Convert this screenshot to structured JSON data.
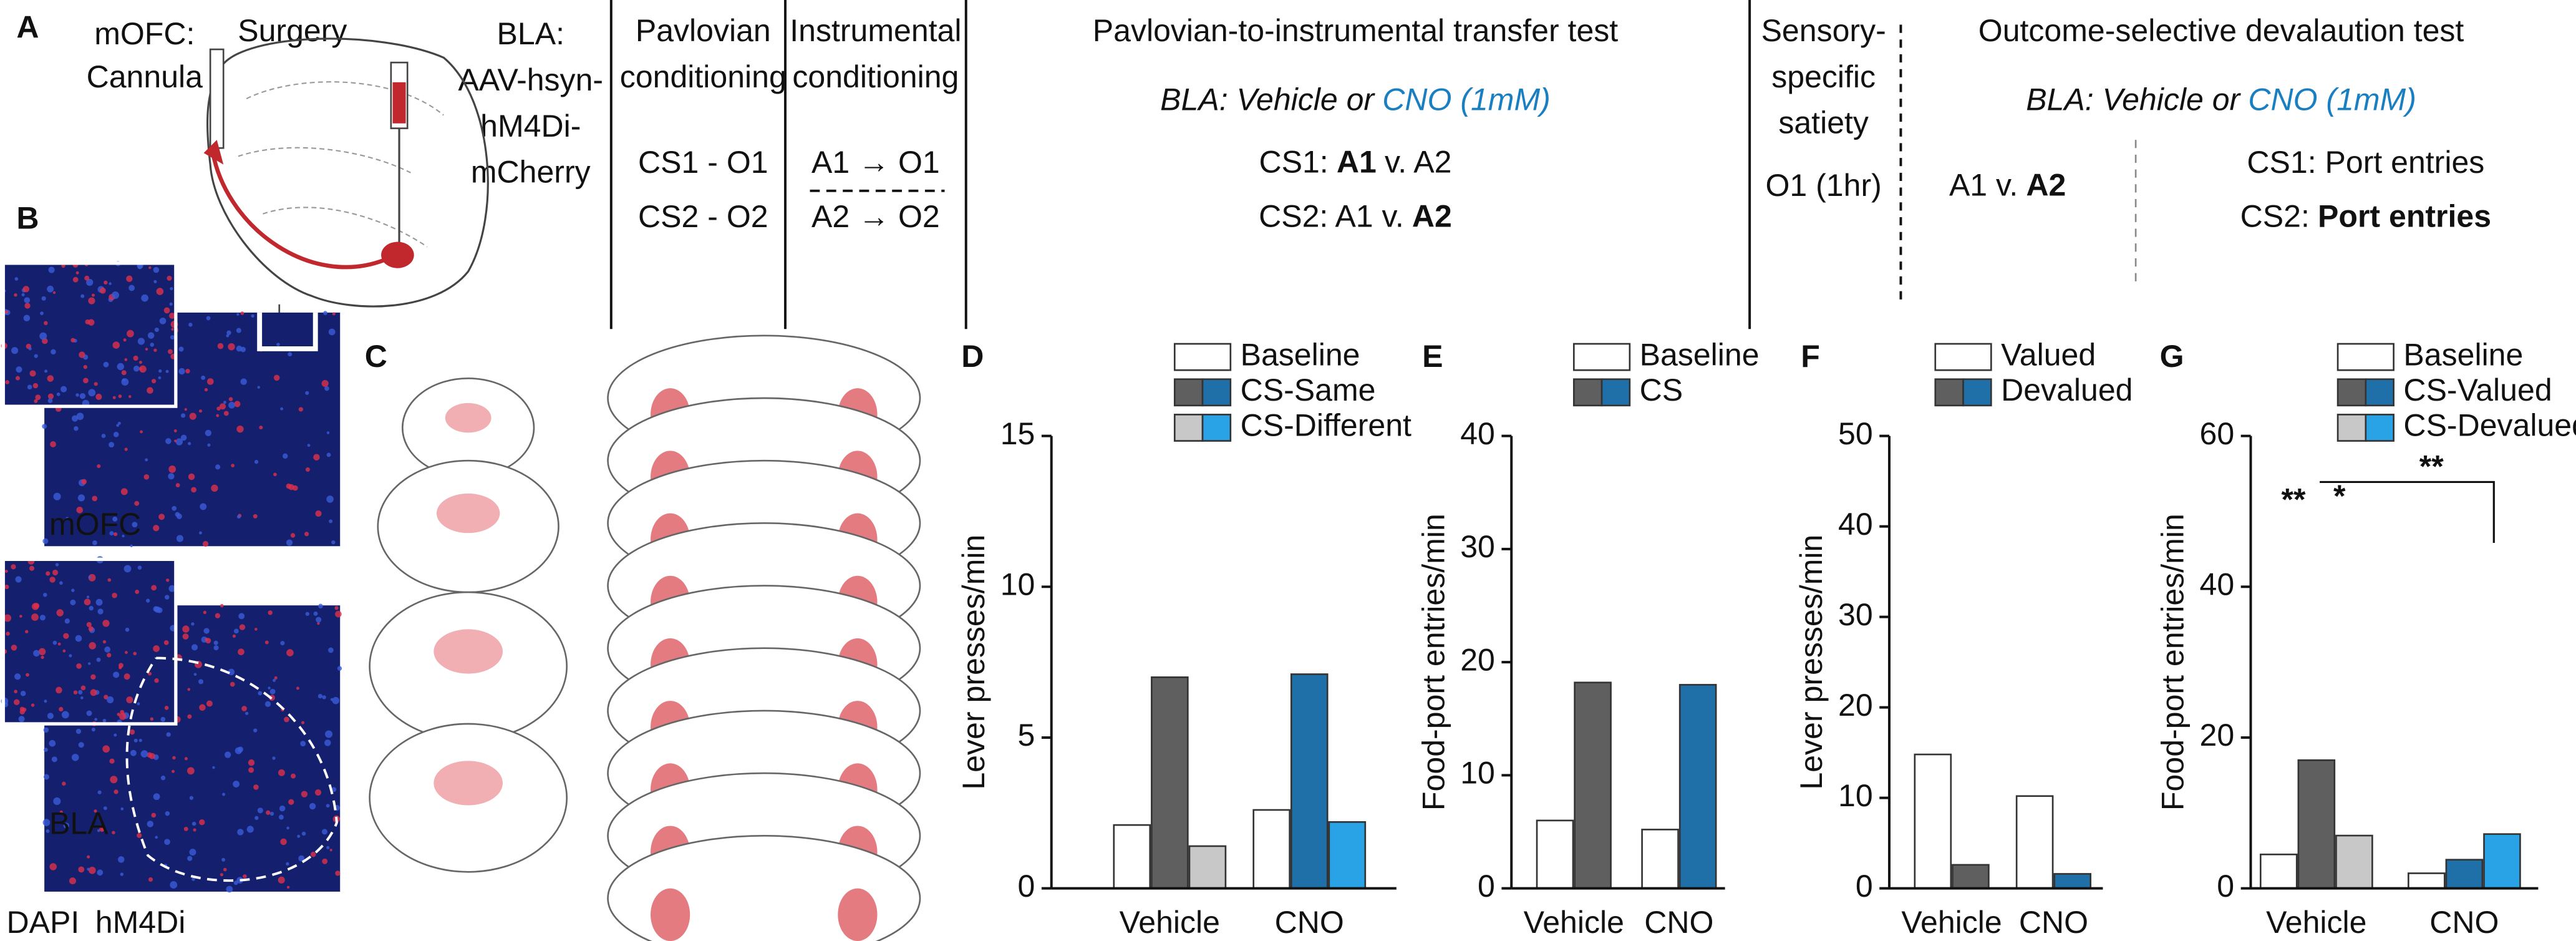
{
  "panel_labels": [
    "A",
    "B",
    "C"
  ],
  "surgery": {
    "title": "Surgery",
    "mofc": [
      "mOFC:",
      "Cannula"
    ],
    "bla": [
      "BLA:",
      "AAV-hsyn-",
      "hM4Di-",
      "mCherry"
    ]
  },
  "pavlovian": {
    "title": [
      "Pavlovian",
      "conditioning"
    ],
    "pairs": [
      "CS1 - O1",
      "CS2 - O2"
    ]
  },
  "instrumental": {
    "title": [
      "Instrumental",
      "conditioning"
    ],
    "pairs": [
      "A1 → O1",
      "A2 → O2"
    ]
  },
  "pit": {
    "title": "Pavlovian-to-instrumental transfer test",
    "drug": [
      "BLA: Vehicle or",
      "CNO (1mM)"
    ],
    "cs1": [
      "CS1:",
      "A1",
      "v. A2"
    ],
    "cs2": [
      "CS2: A1 v.",
      "A2"
    ]
  },
  "satiety": {
    "title": [
      "Sensory-",
      "specific",
      "satiety"
    ],
    "outcome": "O1 (1hr)"
  },
  "devaluation": {
    "title": "Outcome-selective devalaution test",
    "drug": [
      "BLA: Vehicle or",
      "CNO (1mM)"
    ],
    "choice": [
      "A1 v.",
      "A2"
    ],
    "cs1": "CS1: Port entries",
    "cs2": [
      "CS2:",
      "Port entries"
    ]
  },
  "histology": {
    "regions": [
      "mOFC",
      "BLA"
    ],
    "stains": [
      "DAPI",
      "hM4Di"
    ]
  },
  "chart_data": [
    {
      "type": "bar",
      "label": "D",
      "y_label": "Lever presses/min",
      "categories": [
        "Vehicle",
        "CNO"
      ],
      "series": [
        {
          "name": "Baseline",
          "colors": [
            "#ffffff",
            "#ffffff"
          ],
          "values": [
            2.1,
            2.6
          ]
        },
        {
          "name": "CS-Same",
          "colors": [
            "#5f5f5f",
            "#1f6fa8"
          ],
          "values": [
            7.0,
            7.1
          ]
        },
        {
          "name": "CS-Different",
          "colors": [
            "#c8c8c8",
            "#29a3e6"
          ],
          "values": [
            1.4,
            2.2
          ]
        }
      ],
      "ylim": [
        0,
        15
      ],
      "yticks": [
        0,
        5,
        10,
        15
      ]
    },
    {
      "type": "bar",
      "label": "E",
      "y_label": "Food-port entries/min",
      "categories": [
        "Vehicle",
        "CNO"
      ],
      "series": [
        {
          "name": "Baseline",
          "colors": [
            "#ffffff",
            "#ffffff"
          ],
          "values": [
            6.0,
            5.2
          ]
        },
        {
          "name": "CS",
          "colors": [
            "#5f5f5f",
            "#1f6fa8"
          ],
          "values": [
            18.2,
            18.0
          ]
        }
      ],
      "ylim": [
        0,
        40
      ],
      "yticks": [
        0,
        10,
        20,
        30,
        40
      ]
    },
    {
      "type": "bar",
      "label": "F",
      "y_label": "Lever presses/min",
      "categories": [
        "Vehicle",
        "CNO"
      ],
      "series": [
        {
          "name": "Valued",
          "colors": [
            "#ffffff",
            "#ffffff"
          ],
          "values": [
            14.8,
            10.2
          ]
        },
        {
          "name": "Devalued",
          "colors": [
            "#5f5f5f",
            "#1f6fa8"
          ],
          "values": [
            2.6,
            1.6
          ]
        }
      ],
      "ylim": [
        0,
        50
      ],
      "yticks": [
        0,
        10,
        20,
        30,
        40,
        50
      ]
    },
    {
      "type": "bar",
      "label": "G",
      "y_label": "Food-port entries/min",
      "categories": [
        "Vehicle",
        "CNO"
      ],
      "series": [
        {
          "name": "Baseline",
          "colors": [
            "#ffffff",
            "#ffffff"
          ],
          "values": [
            4.5,
            2.0
          ]
        },
        {
          "name": "CS-Valued",
          "colors": [
            "#5f5f5f",
            "#1f6fa8"
          ],
          "values": [
            17.0,
            3.8
          ]
        },
        {
          "name": "CS-Devalued",
          "colors": [
            "#c8c8c8",
            "#29a3e6"
          ],
          "values": [
            7.0,
            7.2
          ]
        }
      ],
      "ylim": [
        0,
        60
      ],
      "yticks": [
        0,
        20,
        40,
        60
      ],
      "annotations": [
        "**",
        "*",
        "**"
      ]
    }
  ]
}
